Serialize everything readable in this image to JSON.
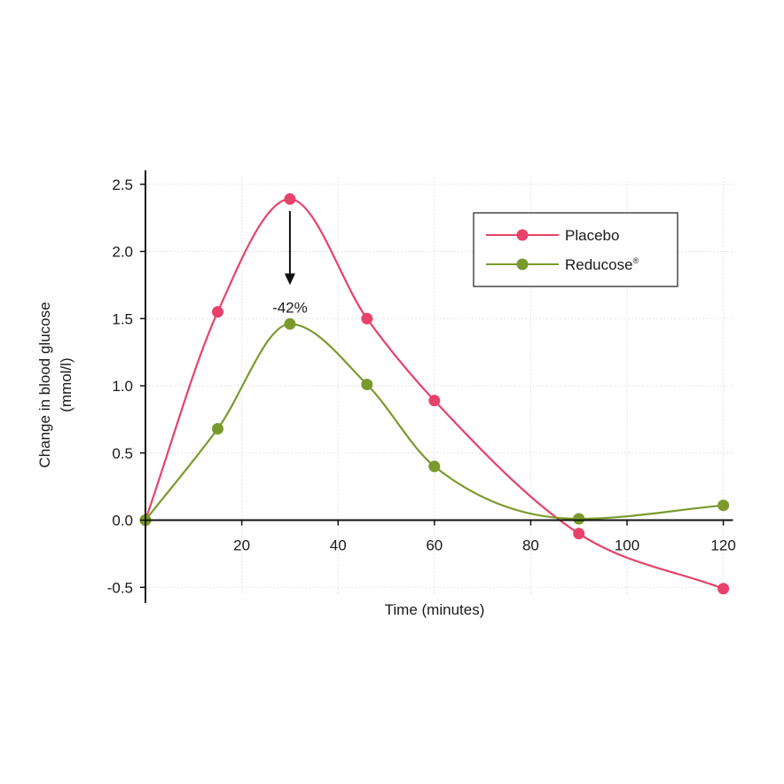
{
  "chart_data": {
    "type": "line",
    "title": "",
    "xlabel": "Time (minutes)",
    "ylabel": "Change in blood glucose",
    "ylabel_units": "(mmol/l)",
    "xlim": [
      0,
      122
    ],
    "ylim": [
      -0.55,
      2.55
    ],
    "x_ticks": [
      20,
      40,
      60,
      80,
      100,
      120
    ],
    "y_ticks": [
      -0.5,
      0.0,
      0.5,
      1.0,
      1.5,
      2.0,
      2.5
    ],
    "y_tick_labels": [
      "-0.5",
      "0.0",
      "0.5",
      "1.0",
      "1.5",
      "2.0",
      "2.5"
    ],
    "grid": true,
    "legend_position": "top-right",
    "series": [
      {
        "name": "Placebo",
        "color": "#e8416b",
        "x": [
          0,
          15,
          30,
          46,
          60,
          90,
          120
        ],
        "values": [
          0.0,
          1.55,
          2.39,
          1.5,
          0.89,
          -0.1,
          -0.51
        ]
      },
      {
        "name": "Reducose",
        "legend_suffix": "®",
        "color": "#7a9a2e",
        "x": [
          0,
          15,
          30,
          46,
          60,
          90,
          120
        ],
        "values": [
          0.0,
          0.68,
          1.46,
          1.01,
          0.4,
          0.01,
          0.11
        ]
      }
    ],
    "annotations": [
      {
        "text": "-42%",
        "x": 30,
        "from_y": 2.3,
        "to_y": 1.75,
        "type": "arrow"
      }
    ]
  }
}
